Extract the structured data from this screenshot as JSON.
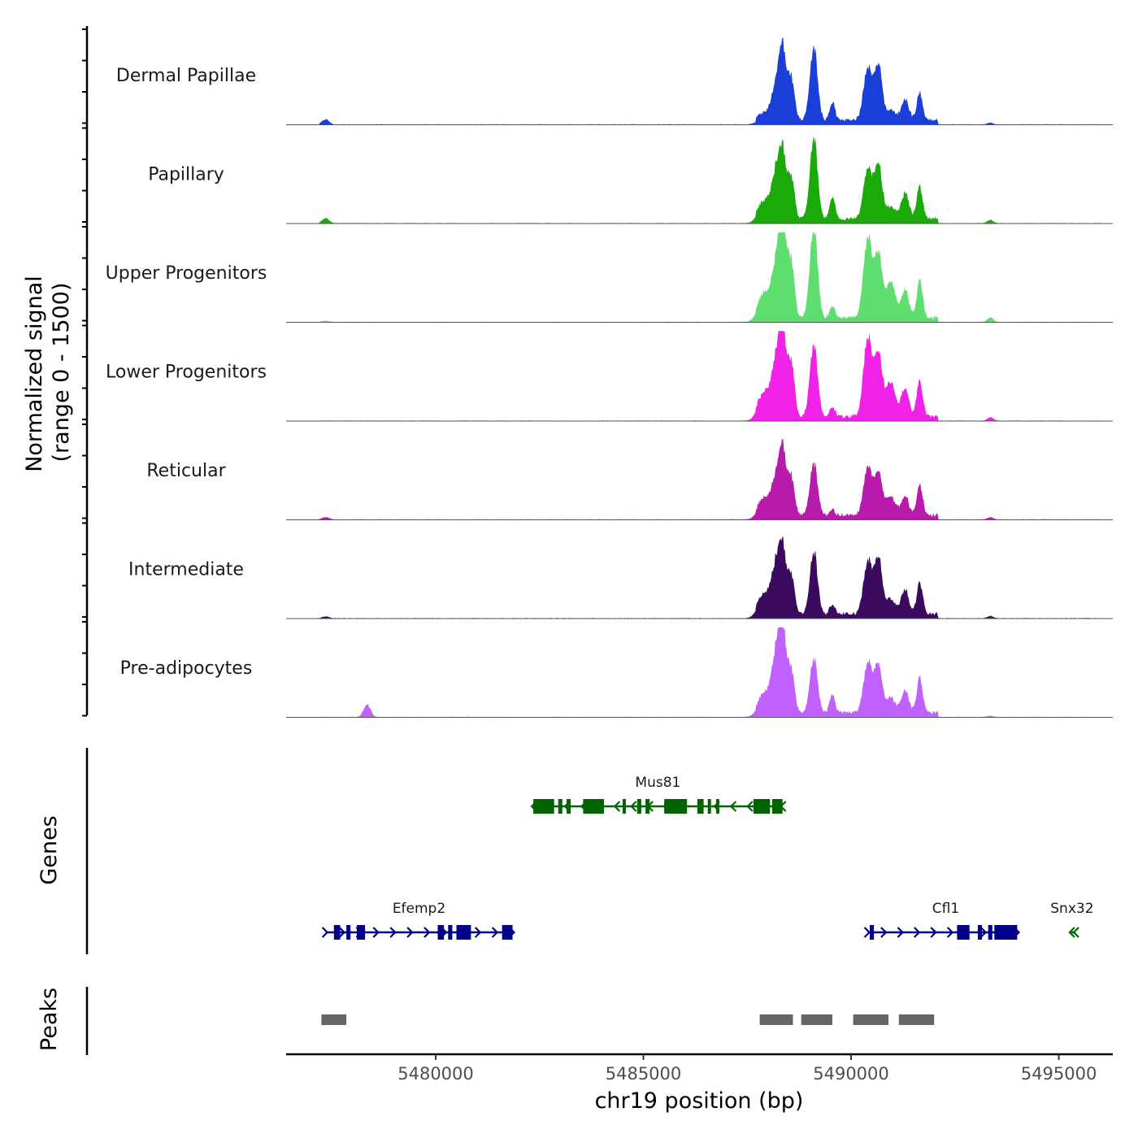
{
  "chart_data": {
    "type": "area",
    "title": "",
    "xlabel": "chr19 position (bp)",
    "ylabel": "Normalized signal",
    "ylabel_range": "(range 0 - 1500)",
    "xlim": [
      5476400,
      5496300
    ],
    "ylim": [
      0,
      1500
    ],
    "x_ticks": [
      5480000,
      5485000,
      5490000,
      5495000
    ],
    "x_tick_labels": [
      "5480000",
      "5485000",
      "5490000",
      "5495000"
    ],
    "peak_components": [
      {
        "center": 5477350,
        "width": 80
      },
      {
        "center": 5478350,
        "width": 80
      },
      {
        "center": 5487900,
        "width": 140
      },
      {
        "center": 5488200,
        "width": 110
      },
      {
        "center": 5488350,
        "width": 80
      },
      {
        "center": 5488550,
        "width": 80
      },
      {
        "center": 5489100,
        "width": 90
      },
      {
        "center": 5489550,
        "width": 60
      },
      {
        "center": 5490400,
        "width": 100
      },
      {
        "center": 5490650,
        "width": 90
      },
      {
        "center": 5490950,
        "width": 110
      },
      {
        "center": 5491300,
        "width": 90
      },
      {
        "center": 5491650,
        "width": 70
      },
      {
        "center": 5493350,
        "width": 70
      }
    ],
    "series": [
      {
        "name": "Dermal Papillae",
        "color": "#1a3fd9",
        "peak_heights": [
          90,
          0,
          120,
          630,
          1180,
          780,
          1350,
          330,
          950,
          1050,
          180,
          370,
          460,
          30
        ]
      },
      {
        "name": "Papillary",
        "color": "#1aaa0a",
        "peak_heights": [
          90,
          0,
          320,
          830,
          1020,
          760,
          1500,
          390,
          920,
          1040,
          220,
          460,
          550,
          60
        ]
      },
      {
        "name": "Upper Progenitors",
        "color": "#5ede6e",
        "peak_heights": [
          20,
          0,
          420,
          930,
          1720,
          1020,
          1700,
          200,
          1450,
          1200,
          680,
          490,
          640,
          80
        ]
      },
      {
        "name": "Lower Progenitors",
        "color": "#f022e8",
        "peak_heights": [
          0,
          0,
          430,
          980,
          1420,
          980,
          1330,
          160,
          1420,
          1200,
          640,
          500,
          620,
          60
        ]
      },
      {
        "name": "Reticular",
        "color": "#b81aac",
        "peak_heights": [
          40,
          0,
          300,
          650,
          1070,
          700,
          960,
          120,
          890,
          820,
          340,
          350,
          520,
          40
        ]
      },
      {
        "name": "Intermediate",
        "color": "#3b0a5e",
        "peak_heights": [
          30,
          0,
          360,
          880,
          1010,
          720,
          1140,
          180,
          960,
          1060,
          290,
          430,
          540,
          40
        ]
      },
      {
        "name": "Pre-adipocytes",
        "color": "#c060ff",
        "peak_heights": [
          0,
          220,
          330,
          1060,
          1410,
          780,
          1000,
          330,
          910,
          900,
          280,
          390,
          600,
          20
        ]
      }
    ],
    "genes_track": {
      "label": "Genes",
      "genes": [
        {
          "name": "Mus81",
          "start": 5482350,
          "end": 5488350,
          "strand": "-",
          "color": "#006400",
          "row": 1,
          "exons": [
            [
              5482350,
              5482850
            ],
            [
              5482950,
              5483050
            ],
            [
              5483150,
              5483250
            ],
            [
              5483550,
              5484050
            ],
            [
              5484500,
              5484550
            ],
            [
              5484850,
              5484950
            ],
            [
              5485050,
              5485150
            ],
            [
              5485500,
              5486050
            ],
            [
              5486300,
              5486450
            ],
            [
              5486550,
              5486600
            ],
            [
              5486750,
              5486800
            ],
            [
              5487650,
              5488050
            ],
            [
              5488100,
              5488350
            ]
          ]
        },
        {
          "name": "Efemp2",
          "start": 5477350,
          "end": 5481850,
          "strand": "+",
          "color": "#00008b",
          "row": 2,
          "exons": [
            [
              5477550,
              5477700
            ],
            [
              5477850,
              5477950
            ],
            [
              5478100,
              5478300
            ],
            [
              5480050,
              5480200
            ],
            [
              5480300,
              5480400
            ],
            [
              5480500,
              5480850
            ],
            [
              5481600,
              5481850
            ]
          ]
        },
        {
          "name": "Cfl1",
          "start": 5490400,
          "end": 5494000,
          "strand": "+",
          "color": "#00008b",
          "row": 2,
          "exons": [
            [
              5490450,
              5490550
            ],
            [
              5492550,
              5492850
            ],
            [
              5493050,
              5493150
            ],
            [
              5493300,
              5493400
            ],
            [
              5493450,
              5494000
            ]
          ]
        },
        {
          "name": "Snx32",
          "start": 5495300,
          "end": 5495400,
          "strand": "-",
          "color": "#006400",
          "row": 2,
          "exons": []
        }
      ]
    },
    "peaks_track": {
      "label": "Peaks",
      "color": "#666666",
      "peaks": [
        [
          5477250,
          5477850
        ],
        [
          5487800,
          5488600
        ],
        [
          5488800,
          5489550
        ],
        [
          5490050,
          5490900
        ],
        [
          5491150,
          5492000
        ]
      ]
    }
  }
}
